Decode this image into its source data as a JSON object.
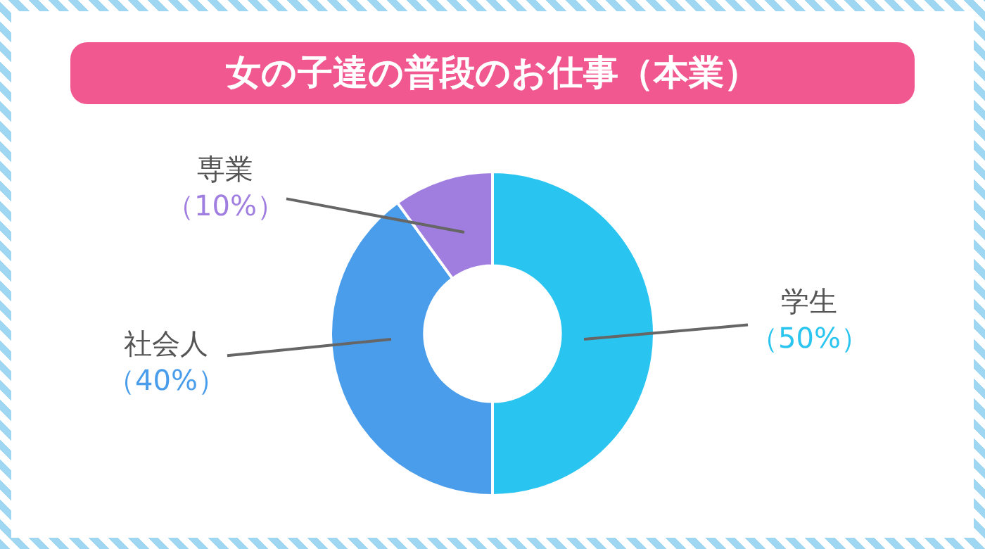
{
  "chart_data": {
    "type": "donut",
    "title": "女の子達の普段のお仕事（本業）",
    "categories": [
      "学生",
      "社会人",
      "専業"
    ],
    "values": [
      50,
      40,
      10
    ],
    "value_labels": [
      "（50%）",
      "（40%）",
      "（10%）"
    ],
    "colors": [
      "#29c4ef",
      "#4a9deb",
      "#a07ee0"
    ]
  }
}
